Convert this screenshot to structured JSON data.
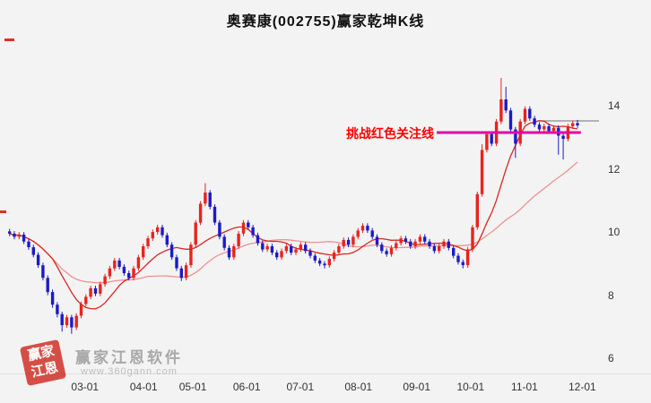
{
  "title": "奥赛康(002755)赢家乾坤K线",
  "annotation": {
    "text": "挑战红色关注线",
    "color": "#ff0000",
    "price": 13.15
  },
  "watermark": {
    "brand": "赢家江恩软件",
    "url": "www.360gann.com",
    "seal_chars": "赢家江恩"
  },
  "chart_data": {
    "type": "candlestick",
    "title": "奥赛康(002755)赢家乾坤K线",
    "ylim": [
      5.58,
      15.93
    ],
    "total_slots": 124,
    "y_ticks": [
      14,
      12,
      10,
      8,
      6
    ],
    "x_ticks": [
      {
        "label": "03-01",
        "slot": 16.3
      },
      {
        "label": "04-01",
        "slot": 28.6
      },
      {
        "label": "05-01",
        "slot": 38.9
      },
      {
        "label": "06-01",
        "slot": 50.2
      },
      {
        "label": "07-01",
        "slot": 61.4
      },
      {
        "label": "08-01",
        "slot": 73.6
      },
      {
        "label": "09-01",
        "slot": 85.8
      },
      {
        "label": "10-01",
        "slot": 97.1
      },
      {
        "label": "11-01",
        "slot": 108.4
      },
      {
        "label": "12-01",
        "slot": 120.5
      }
    ],
    "ma_periods": [
      10,
      30
    ],
    "colors": {
      "up": "#e8231f",
      "down": "#1b1bc8",
      "ma_fast": "#d9261f",
      "ma_slow": "#f09090",
      "challenge_line": "#e600a9",
      "reference_line": "#8c8c8c"
    },
    "challenge_line": {
      "price": 13.15,
      "from_slot": 90,
      "to_slot": 120.2
    },
    "reference_line": {
      "price": 13.52,
      "from_slot": 111,
      "to_slot": 124
    },
    "candles": [
      [
        10.02,
        10.1,
        9.87,
        9.95
      ],
      [
        9.95,
        10.03,
        9.77,
        9.85
      ],
      [
        9.85,
        10.0,
        9.77,
        9.92
      ],
      [
        9.92,
        10.0,
        9.62,
        9.7
      ],
      [
        9.7,
        9.78,
        9.44,
        9.52
      ],
      [
        9.52,
        9.6,
        9.2,
        9.28
      ],
      [
        9.28,
        9.36,
        8.87,
        8.95
      ],
      [
        8.95,
        9.03,
        8.47,
        8.55
      ],
      [
        8.55,
        8.63,
        8.0,
        8.1
      ],
      [
        8.1,
        8.18,
        7.6,
        7.7
      ],
      [
        7.7,
        7.78,
        7.3,
        7.4
      ],
      [
        7.4,
        7.48,
        6.85,
        7.05
      ],
      [
        7.05,
        7.38,
        6.97,
        7.3
      ],
      [
        7.3,
        7.38,
        6.78,
        6.98
      ],
      [
        6.98,
        7.43,
        6.9,
        7.35
      ],
      [
        7.35,
        7.8,
        7.27,
        7.72
      ],
      [
        7.72,
        8.03,
        7.64,
        7.95
      ],
      [
        7.95,
        8.3,
        7.87,
        8.22
      ],
      [
        8.22,
        8.3,
        7.97,
        8.05
      ],
      [
        8.05,
        8.43,
        7.97,
        8.35
      ],
      [
        8.35,
        8.68,
        8.27,
        8.6
      ],
      [
        8.6,
        8.93,
        8.52,
        8.85
      ],
      [
        8.85,
        9.18,
        8.77,
        9.1
      ],
      [
        9.1,
        9.18,
        8.82,
        8.9
      ],
      [
        8.9,
        8.98,
        8.62,
        8.7
      ],
      [
        8.7,
        8.78,
        8.47,
        8.55
      ],
      [
        8.55,
        8.93,
        8.47,
        8.85
      ],
      [
        8.85,
        9.28,
        8.77,
        9.2
      ],
      [
        9.2,
        9.63,
        9.12,
        9.55
      ],
      [
        9.55,
        9.88,
        9.47,
        9.8
      ],
      [
        9.8,
        10.08,
        9.72,
        10.0
      ],
      [
        10.0,
        10.23,
        9.92,
        10.15
      ],
      [
        10.15,
        10.23,
        9.82,
        9.9
      ],
      [
        9.9,
        9.98,
        9.52,
        9.6
      ],
      [
        9.6,
        9.68,
        9.12,
        9.2
      ],
      [
        9.2,
        9.28,
        8.77,
        8.85
      ],
      [
        8.85,
        8.93,
        8.45,
        8.55
      ],
      [
        8.55,
        9.03,
        8.47,
        8.95
      ],
      [
        8.95,
        9.68,
        8.87,
        9.6
      ],
      [
        9.6,
        10.38,
        9.52,
        10.3
      ],
      [
        10.3,
        10.98,
        10.22,
        10.9
      ],
      [
        10.9,
        11.55,
        10.82,
        11.25
      ],
      [
        11.25,
        11.33,
        10.72,
        10.8
      ],
      [
        10.8,
        10.88,
        10.22,
        10.3
      ],
      [
        10.3,
        10.38,
        9.77,
        9.85
      ],
      [
        9.85,
        9.93,
        9.42,
        9.5
      ],
      [
        9.5,
        9.58,
        9.12,
        9.2
      ],
      [
        9.2,
        9.63,
        9.12,
        9.55
      ],
      [
        9.55,
        10.03,
        9.47,
        9.95
      ],
      [
        9.95,
        10.38,
        9.87,
        10.3
      ],
      [
        10.3,
        10.38,
        10.07,
        10.15
      ],
      [
        10.15,
        10.23,
        9.82,
        9.9
      ],
      [
        9.9,
        9.98,
        9.57,
        9.65
      ],
      [
        9.65,
        9.73,
        9.37,
        9.45
      ],
      [
        9.45,
        9.63,
        9.37,
        9.55
      ],
      [
        9.55,
        9.63,
        9.27,
        9.35
      ],
      [
        9.35,
        9.43,
        9.12,
        9.2
      ],
      [
        9.2,
        9.48,
        9.12,
        9.4
      ],
      [
        9.4,
        9.63,
        9.32,
        9.55
      ],
      [
        9.55,
        9.63,
        9.27,
        9.35
      ],
      [
        9.35,
        9.53,
        9.27,
        9.45
      ],
      [
        9.45,
        9.68,
        9.37,
        9.6
      ],
      [
        9.6,
        9.68,
        9.32,
        9.4
      ],
      [
        9.4,
        9.48,
        9.17,
        9.25
      ],
      [
        9.25,
        9.33,
        9.02,
        9.1
      ],
      [
        9.1,
        9.18,
        8.92,
        9.0
      ],
      [
        9.0,
        9.08,
        8.85,
        8.95
      ],
      [
        8.95,
        9.23,
        8.87,
        9.15
      ],
      [
        9.15,
        9.43,
        9.07,
        9.35
      ],
      [
        9.35,
        9.63,
        9.27,
        9.55
      ],
      [
        9.55,
        9.83,
        9.47,
        9.75
      ],
      [
        9.75,
        9.83,
        9.52,
        9.6
      ],
      [
        9.6,
        9.93,
        9.52,
        9.85
      ],
      [
        9.85,
        10.13,
        9.77,
        10.05
      ],
      [
        10.05,
        10.28,
        9.97,
        10.2
      ],
      [
        10.2,
        10.28,
        9.97,
        10.05
      ],
      [
        10.05,
        10.13,
        9.77,
        9.85
      ],
      [
        9.85,
        9.93,
        9.52,
        9.6
      ],
      [
        9.6,
        9.68,
        9.32,
        9.4
      ],
      [
        9.4,
        9.48,
        9.22,
        9.3
      ],
      [
        9.3,
        9.58,
        9.22,
        9.5
      ],
      [
        9.5,
        9.73,
        9.42,
        9.65
      ],
      [
        9.65,
        9.88,
        9.57,
        9.8
      ],
      [
        9.8,
        9.88,
        9.62,
        9.7
      ],
      [
        9.7,
        9.78,
        9.47,
        9.55
      ],
      [
        9.55,
        9.78,
        9.47,
        9.7
      ],
      [
        9.7,
        9.93,
        9.62,
        9.85
      ],
      [
        9.85,
        9.93,
        9.62,
        9.7
      ],
      [
        9.7,
        9.78,
        9.47,
        9.55
      ],
      [
        9.55,
        9.63,
        9.32,
        9.4
      ],
      [
        9.4,
        9.63,
        9.32,
        9.55
      ],
      [
        9.55,
        9.78,
        9.47,
        9.7
      ],
      [
        9.7,
        9.78,
        9.42,
        9.5
      ],
      [
        9.5,
        9.58,
        9.17,
        9.25
      ],
      [
        9.25,
        9.33,
        8.97,
        9.05
      ],
      [
        9.05,
        9.13,
        8.85,
        8.95
      ],
      [
        8.95,
        9.53,
        8.87,
        9.45
      ],
      [
        9.45,
        10.23,
        9.37,
        10.15
      ],
      [
        10.15,
        11.28,
        10.07,
        11.2
      ],
      [
        11.2,
        12.78,
        11.12,
        12.6
      ],
      [
        12.6,
        13.18,
        12.52,
        13.1
      ],
      [
        13.1,
        13.18,
        12.72,
        12.8
      ],
      [
        12.8,
        13.58,
        12.72,
        13.5
      ],
      [
        13.5,
        14.88,
        13.42,
        14.2
      ],
      [
        14.2,
        14.6,
        13.77,
        13.85
      ],
      [
        13.85,
        13.93,
        13.17,
        13.25
      ],
      [
        13.25,
        13.33,
        12.35,
        12.8
      ],
      [
        12.8,
        13.58,
        12.72,
        13.5
      ],
      [
        13.5,
        13.98,
        13.42,
        13.9
      ],
      [
        13.9,
        13.98,
        13.52,
        13.6
      ],
      [
        13.6,
        13.68,
        13.32,
        13.4
      ],
      [
        13.4,
        13.48,
        13.17,
        13.25
      ],
      [
        13.25,
        13.43,
        13.17,
        13.35
      ],
      [
        13.35,
        13.43,
        13.12,
        13.2
      ],
      [
        13.2,
        13.38,
        13.12,
        13.3
      ],
      [
        13.3,
        13.38,
        12.45,
        13.05
      ],
      [
        13.05,
        13.13,
        12.3,
        12.95
      ],
      [
        12.95,
        13.43,
        12.87,
        13.35
      ],
      [
        13.35,
        13.53,
        13.27,
        13.45
      ],
      [
        13.45,
        13.55,
        13.3,
        13.38
      ]
    ]
  }
}
